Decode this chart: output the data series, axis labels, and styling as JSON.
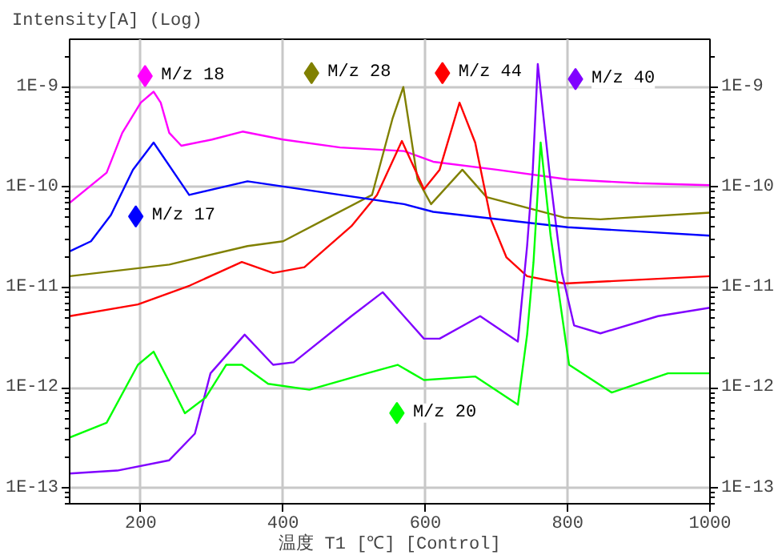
{
  "chart_data": {
    "type": "line",
    "ylabel": "Intensity[A] (Log)",
    "xlabel": "温度 T1 [℃] [Control]",
    "xlim": [
      100,
      1000
    ],
    "xticks": [
      200,
      400,
      600,
      800,
      1000
    ],
    "ylim": [
      7e-14,
      3e-09
    ],
    "yticks": [
      {
        "value": 1e-13,
        "label": "1E-13"
      },
      {
        "value": 1e-12,
        "label": "1E-12"
      },
      {
        "value": 1e-11,
        "label": "1E-11"
      },
      {
        "value": 1e-10,
        "label": "1E-10"
      },
      {
        "value": 1e-09,
        "label": "1E-9"
      }
    ],
    "log": "y",
    "legend": "top",
    "grid": true,
    "line_style": "solid",
    "series": [
      {
        "name": "M/z 18",
        "color": "#ff00ff",
        "x": [
          100,
          152,
          174,
          200,
          218,
          228,
          240,
          257,
          300,
          343,
          400,
          480,
          570,
          611,
          700,
          800,
          900,
          1000
        ],
        "values": [
          7e-11,
          1.4e-10,
          3.5e-10,
          7e-10,
          9e-10,
          7e-10,
          3.5e-10,
          2.6e-10,
          3e-10,
          3.6e-10,
          3e-10,
          2.5e-10,
          2.3e-10,
          1.8e-10,
          1.5e-10,
          1.2e-10,
          1.1e-10,
          1.05e-10
        ]
      },
      {
        "name": "M/z 28",
        "color": "#808000",
        "x": [
          100,
          240,
          350,
          400,
          459,
          525,
          554,
          569,
          589,
          608,
          652,
          686,
          795,
          846,
          1000
        ],
        "values": [
          1.3e-11,
          1.7e-11,
          2.6e-11,
          2.9e-11,
          4.8e-11,
          8.4e-11,
          4.9e-10,
          1e-09,
          1.2e-10,
          6.8e-11,
          1.5e-10,
          8e-11,
          5e-11,
          4.8e-11,
          5.6e-11
        ]
      },
      {
        "name": "M/z 44",
        "color": "#ff0000",
        "x": [
          100,
          196,
          269,
          342,
          386,
          430,
          496,
          532,
          567,
          598,
          620,
          648,
          670,
          692,
          714,
          743,
          795,
          1000
        ],
        "values": [
          5.2e-12,
          6.8e-12,
          1.05e-11,
          1.8e-11,
          1.4e-11,
          1.6e-11,
          4.1e-11,
          8.4e-11,
          2.9e-10,
          9.6e-11,
          1.5e-10,
          7e-10,
          2.8e-10,
          4.8e-11,
          2e-11,
          1.3e-11,
          1.1e-11,
          1.3e-11
        ]
      },
      {
        "name": "M/z 40",
        "color": "#8000ff",
        "x": [
          100,
          167,
          240,
          276,
          298,
          346,
          386,
          415,
          496,
          540,
          598,
          620,
          677,
          730,
          743,
          751,
          758,
          774,
          792,
          809,
          846,
          927,
          1000
        ],
        "values": [
          1.4e-13,
          1.5e-13,
          1.9e-13,
          3.5e-13,
          1.4e-12,
          3.4e-12,
          1.7e-12,
          1.8e-12,
          5.2e-12,
          9e-12,
          3.1e-12,
          3.1e-12,
          5.2e-12,
          2.9e-12,
          2.6e-11,
          1.5e-10,
          1.7e-09,
          1.5e-10,
          1.4e-11,
          4.2e-12,
          3.5e-12,
          5.2e-12,
          6.3e-12
        ]
      },
      {
        "name": "M/z 17",
        "color": "#0000ff",
        "x": [
          100,
          130,
          158,
          189,
          218,
          268,
          350,
          570,
          611,
          800,
          1000
        ],
        "values": [
          2.3e-11,
          2.9e-11,
          5.3e-11,
          1.5e-10,
          2.8e-10,
          8.4e-11,
          1.15e-10,
          6.8e-11,
          5.7e-11,
          4e-11,
          3.3e-11
        ]
      },
      {
        "name": "M/z 20",
        "color": "#00ff00",
        "x": [
          100,
          152,
          196,
          218,
          240,
          262,
          291,
          320,
          342,
          379,
          437,
          518,
          561,
          598,
          670,
          730,
          743,
          752,
          762,
          776,
          802,
          862,
          941,
          1000
        ],
        "values": [
          3.2e-13,
          4.5e-13,
          1.7e-12,
          2.3e-12,
          1.15e-12,
          5.6e-13,
          8e-13,
          1.7e-12,
          1.7e-12,
          1.1e-12,
          9.6e-13,
          1.4e-12,
          1.7e-12,
          1.2e-12,
          1.3e-12,
          6.8e-13,
          3.4e-12,
          1.8e-11,
          2.8e-10,
          3.3e-11,
          1.7e-12,
          9e-13,
          1.4e-12,
          1.4e-12
        ]
      }
    ]
  }
}
